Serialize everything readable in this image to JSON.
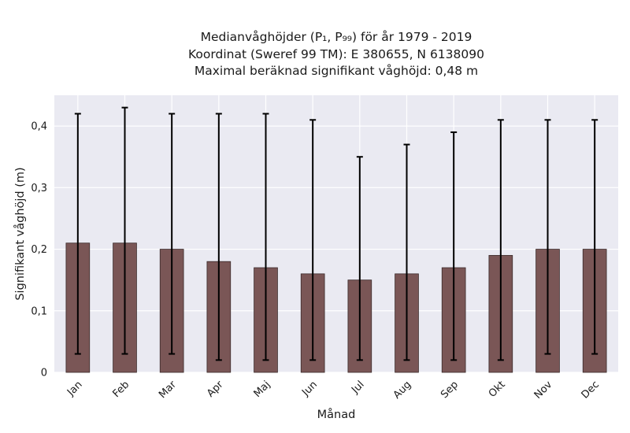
{
  "chart_data": {
    "type": "bar",
    "title_lines": [
      "Medianvåghöjder (P₁, P₉₉) för år 1979 - 2019",
      "Koordinat (Sweref 99 TM): E 380655, N 6138090",
      "Maximal beräknad signifikant våghöjd: 0,48 m"
    ],
    "xlabel": "Månad",
    "ylabel": "Signifikant våghöjd (m)",
    "categories": [
      "Jan",
      "Feb",
      "Mar",
      "Apr",
      "Maj",
      "Jun",
      "Jul",
      "Aug",
      "Sep",
      "Okt",
      "Nov",
      "Dec"
    ],
    "values": [
      0.21,
      0.21,
      0.2,
      0.18,
      0.17,
      0.16,
      0.15,
      0.16,
      0.17,
      0.19,
      0.2,
      0.2
    ],
    "p1": [
      0.03,
      0.03,
      0.03,
      0.02,
      0.02,
      0.02,
      0.02,
      0.02,
      0.02,
      0.02,
      0.03,
      0.03
    ],
    "p99": [
      0.42,
      0.43,
      0.42,
      0.42,
      0.42,
      0.41,
      0.35,
      0.37,
      0.39,
      0.41,
      0.41,
      0.41
    ],
    "ylim": [
      0,
      0.45
    ],
    "yticks": [
      0,
      0.1,
      0.2,
      0.3,
      0.4
    ],
    "ytick_labels": [
      "0",
      "0,1",
      "0,2",
      "0,3",
      "0,4"
    ],
    "grid": true,
    "colors": {
      "bar": "#7a5656",
      "bar_edge": "#3a2a2a",
      "errorbar": "#000000",
      "plot_background": "#eaeaf2",
      "grid": "#ffffff"
    }
  }
}
